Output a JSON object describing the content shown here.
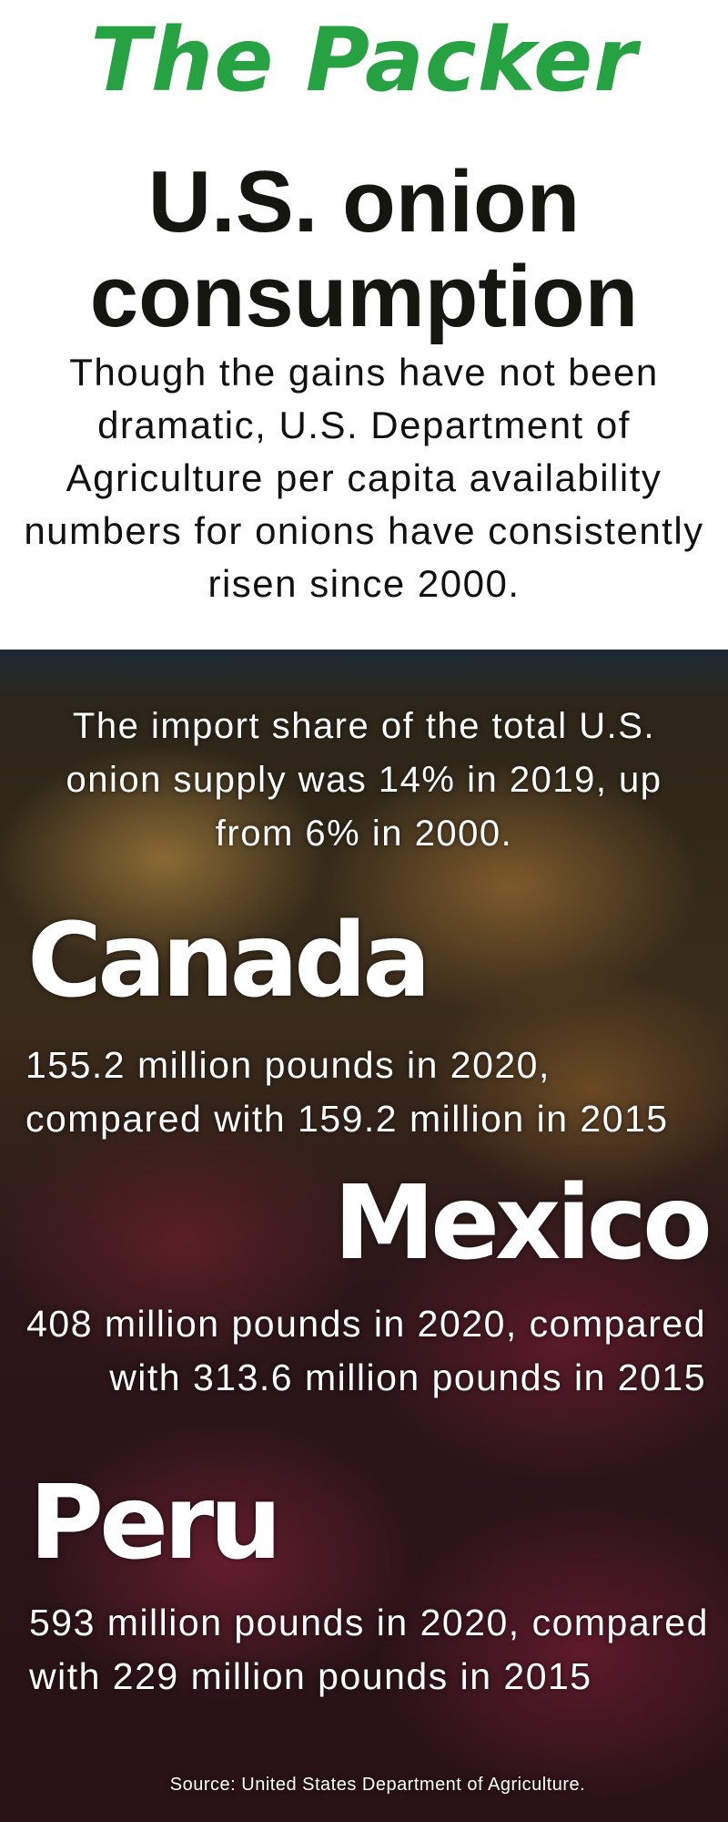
{
  "logo": "The Packer",
  "title": "U.S. onion consumption",
  "intro": "Though the gains have not been dramatic, U.S. Department of Agriculture per capita availability numbers for onions have consistently risen since 2000.",
  "import_share": "The import share of the total U.S. onion supply was 14% in 2019, up from 6% in 2000.",
  "countries": [
    {
      "name": "Canada",
      "text": "155.2 million pounds in 2020, compared with 159.2 million in 2015"
    },
    {
      "name": "Mexico",
      "text": "408 million pounds in 2020, compared with 313.6 million pounds in 2015"
    },
    {
      "name": "Peru",
      "text": "593 million pounds in 2020, compared with 229 million pounds in 2015"
    }
  ],
  "source": "Source: United States Department of Agriculture.",
  "colors": {
    "brand": "#27a243",
    "title": "#15160f"
  }
}
